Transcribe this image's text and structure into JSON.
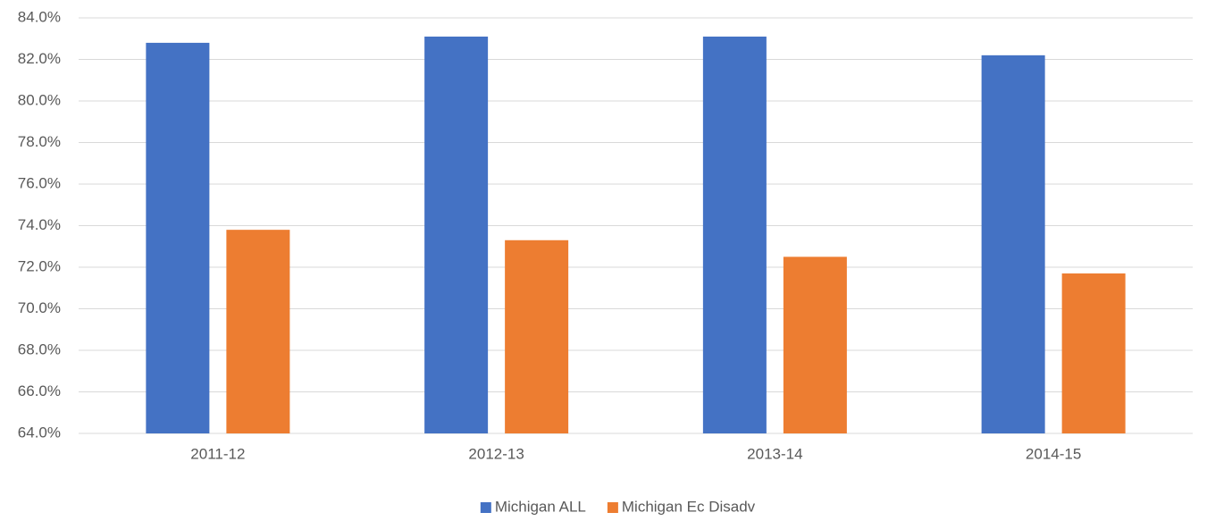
{
  "chart_data": {
    "type": "bar",
    "categories": [
      "2011-12",
      "2012-13",
      "2013-14",
      "2014-15"
    ],
    "series": [
      {
        "name": "Michigan ALL",
        "color": "#4472c4",
        "values": [
          82.8,
          83.1,
          83.1,
          82.2
        ]
      },
      {
        "name": "Michigan Ec Disadv",
        "color": "#ed7d31",
        "values": [
          73.8,
          73.3,
          72.5,
          71.7
        ]
      }
    ],
    "ylim": [
      64,
      84
    ],
    "yticks": [
      {
        "value": 64,
        "label": "64.0%"
      },
      {
        "value": 66,
        "label": "66.0%"
      },
      {
        "value": 68,
        "label": "68.0%"
      },
      {
        "value": 70,
        "label": "70.0%"
      },
      {
        "value": 72,
        "label": "72.0%"
      },
      {
        "value": 74,
        "label": "74.0%"
      },
      {
        "value": 76,
        "label": "76.0%"
      },
      {
        "value": 78,
        "label": "78.0%"
      },
      {
        "value": 80,
        "label": "80.0%"
      },
      {
        "value": 82,
        "label": "82.0%"
      },
      {
        "value": 84,
        "label": "84.0%"
      }
    ],
    "grid": true,
    "legend": "bottom"
  }
}
